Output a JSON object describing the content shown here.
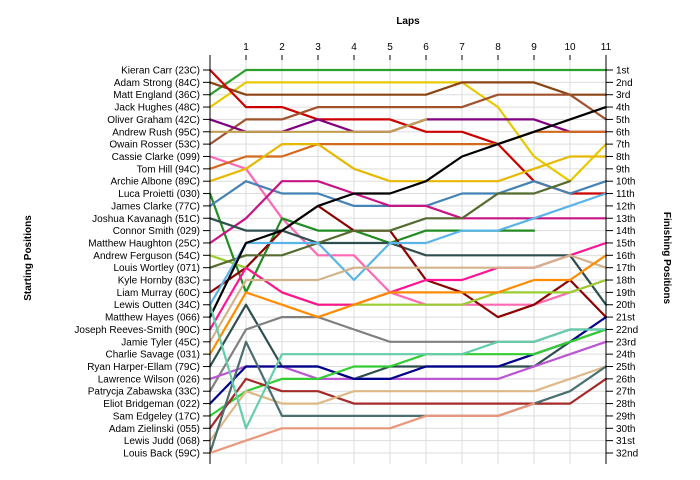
{
  "chart_data": {
    "type": "line",
    "title": "",
    "xlabel": "Laps",
    "ylabel_left": "Starting Positions",
    "ylabel_right": "Finishing Positions",
    "x_ticks": [
      "1",
      "2",
      "3",
      "4",
      "5",
      "6",
      "7",
      "8",
      "9",
      "10",
      "11"
    ],
    "xlim": [
      0,
      11
    ],
    "ylim": [
      1,
      32
    ],
    "y_inverted": true,
    "grid": true,
    "starting_labels": [
      "Kieran Carr (23C)",
      "Adam Strong (84C)",
      "Matt England (36C)",
      "Jack Hughes (48C)",
      "Oliver Graham (42C)",
      "Andrew Rush (95C)",
      "Owain Rosser (53C)",
      "Cassie Clarke (099)",
      "Tom Hill (94C)",
      "Archie Albone (89C)",
      "Luca Proietti (030)",
      "James Clarke (77C)",
      "Joshua Kavanagh (51C)",
      "Connor Smith (029)",
      "Matthew Haughton (25C)",
      "Andrew Ferguson (54C)",
      "Louis Wortley (071)",
      "Kyle Hornby (83C)",
      "Liam Murray (60C)",
      "Lewis Outten (34C)",
      "Matthew Hayes (066)",
      "Joseph Reeves-Smith (90C)",
      "Jamie Tyler (45C)",
      "Charlie Savage (031)",
      "Ryan Harper-Ellam (79C)",
      "Lawrence Wilson (026)",
      "Patrycja Zabawska (33C)",
      "Eliot Bridgeman (022)",
      "Sam Edgeley (17C)",
      "Adam Zielinski (055)",
      "Lewis Judd (068)",
      "Louis Back (59C)"
    ],
    "finishing_labels": [
      "1st",
      "2nd",
      "3rd",
      "4th",
      "5th",
      "6th",
      "7th",
      "8th",
      "9th",
      "10th",
      "11th",
      "12th",
      "13th",
      "14th",
      "15th",
      "16th",
      "17th",
      "18th",
      "19th",
      "20th",
      "21st",
      "22nd",
      "23rd",
      "24th",
      "25th",
      "26th",
      "27th",
      "28th",
      "29th",
      "30th",
      "31st",
      "32nd"
    ],
    "series": [
      {
        "color": "#2ca02c",
        "positions": [
          3,
          1,
          1,
          1,
          1,
          1,
          1,
          1,
          1,
          1,
          1,
          1
        ]
      },
      {
        "color": "#e8c800",
        "positions": [
          4,
          2,
          2,
          2,
          2,
          2,
          2,
          2,
          4,
          8,
          10,
          7
        ]
      },
      {
        "color": "#8b4513",
        "positions": [
          2,
          3,
          3,
          3,
          3,
          3,
          3,
          2,
          2,
          2,
          3,
          3
        ]
      },
      {
        "color": "#cc0000",
        "positions": [
          1,
          4,
          4,
          5,
          5,
          5,
          6,
          6,
          7,
          10,
          11,
          11
        ]
      },
      {
        "color": "#a0522d",
        "positions": [
          7,
          5,
          5,
          4,
          4,
          4,
          4,
          4,
          3,
          3,
          3,
          5
        ]
      },
      {
        "color": "#800080",
        "positions": [
          5,
          6,
          6,
          5,
          6,
          6,
          5,
          5,
          5,
          5,
          6,
          6
        ]
      },
      {
        "color": "#c0a050",
        "positions": [
          6,
          6,
          6,
          6,
          6,
          6,
          5
        ]
      },
      {
        "color": "#ff69b4",
        "positions": [
          8,
          9,
          13,
          16,
          16,
          19,
          20,
          20,
          20,
          20,
          19,
          18
        ]
      },
      {
        "color": "#d2691e",
        "positions": [
          9,
          8,
          8,
          7,
          7,
          7,
          7,
          7,
          7,
          6,
          6,
          6
        ]
      },
      {
        "color": "#e6b800",
        "positions": [
          10,
          9,
          7,
          7,
          9,
          10,
          10,
          10,
          10,
          9,
          8,
          8
        ]
      },
      {
        "color": "#228b22",
        "positions": [
          11,
          19,
          13,
          14,
          14,
          15,
          14,
          14,
          14,
          14
        ]
      },
      {
        "color": "#4682b4",
        "positions": [
          12,
          10,
          11,
          11,
          12,
          12,
          12,
          11,
          11,
          10,
          11,
          10
        ]
      },
      {
        "color": "#c71585",
        "positions": [
          15,
          13,
          10,
          10,
          11,
          12,
          12,
          13,
          13,
          13,
          13,
          13
        ]
      },
      {
        "color": "#2f4f4f",
        "positions": [
          13,
          14,
          14,
          15,
          15,
          15,
          16,
          16,
          16,
          16,
          16,
          20
        ]
      },
      {
        "color": "#8b0000",
        "positions": [
          19,
          17,
          14,
          12,
          14,
          14,
          18,
          19,
          21,
          20,
          18,
          21
        ]
      },
      {
        "color": "#9acd32",
        "positions": [
          16,
          17,
          19,
          20,
          20,
          20,
          20,
          20,
          19,
          19,
          19,
          18
        ]
      },
      {
        "color": "#556b2f",
        "positions": [
          17,
          16,
          16,
          15,
          14,
          14,
          13,
          13,
          11,
          11,
          10
        ]
      },
      {
        "color": "#5ab4e6",
        "positions": [
          20,
          15,
          15,
          15,
          18,
          15,
          15,
          14,
          14,
          13,
          12,
          11
        ]
      },
      {
        "color": "#000000",
        "positions": [
          21,
          15,
          14,
          12,
          11,
          11,
          10,
          8,
          7,
          6,
          5,
          4
        ]
      },
      {
        "color": "#ff1493",
        "positions": [
          22,
          17,
          19,
          20,
          20,
          19,
          18,
          18,
          17,
          17,
          16,
          15
        ]
      },
      {
        "color": "#d2b48c",
        "positions": [
          23,
          18,
          18,
          18,
          17,
          17,
          17,
          17,
          17,
          17,
          16,
          17
        ]
      },
      {
        "color": "#2f4f4f",
        "positions": [
          25,
          20,
          25,
          25,
          26,
          25,
          25,
          25,
          25,
          25,
          23,
          22
        ]
      },
      {
        "color": "#808080",
        "positions": [
          27,
          22,
          21,
          21,
          22,
          23,
          23,
          23,
          23,
          23,
          22,
          22
        ]
      },
      {
        "color": "#ff8c00",
        "positions": [
          24,
          19,
          20,
          21,
          20,
          19,
          19,
          19,
          19,
          18,
          18,
          16
        ]
      },
      {
        "color": "#ba55d3",
        "positions": [
          26,
          25,
          25,
          26,
          26,
          26,
          26,
          26,
          26,
          25,
          24,
          23
        ]
      },
      {
        "color": "#00008b",
        "positions": [
          28,
          25,
          25,
          25,
          26,
          26,
          25,
          25,
          25,
          24,
          23,
          21
        ]
      },
      {
        "color": "#32cd32",
        "positions": [
          29,
          27,
          26,
          26,
          25,
          25,
          24,
          24,
          24,
          24,
          23,
          22
        ]
      },
      {
        "color": "#a52a2a",
        "positions": [
          30,
          26,
          27,
          27,
          28,
          28,
          28,
          28,
          28,
          28,
          28,
          26
        ]
      },
      {
        "color": "#deb887",
        "positions": [
          31,
          27,
          28,
          28,
          27,
          27,
          27,
          27,
          27,
          27,
          26,
          25
        ]
      },
      {
        "color": "#4b6f6f",
        "positions": [
          32,
          23,
          29,
          29,
          29,
          29,
          29,
          29,
          29,
          28,
          27,
          25
        ]
      },
      {
        "color": "#e9967a",
        "positions": [
          32,
          31,
          30,
          30,
          30,
          30,
          29,
          29,
          29,
          28
        ]
      },
      {
        "color": "#66cdaa",
        "positions": [
          20,
          30,
          24,
          24,
          24,
          24,
          24,
          24,
          23,
          23,
          22,
          22
        ]
      }
    ]
  }
}
